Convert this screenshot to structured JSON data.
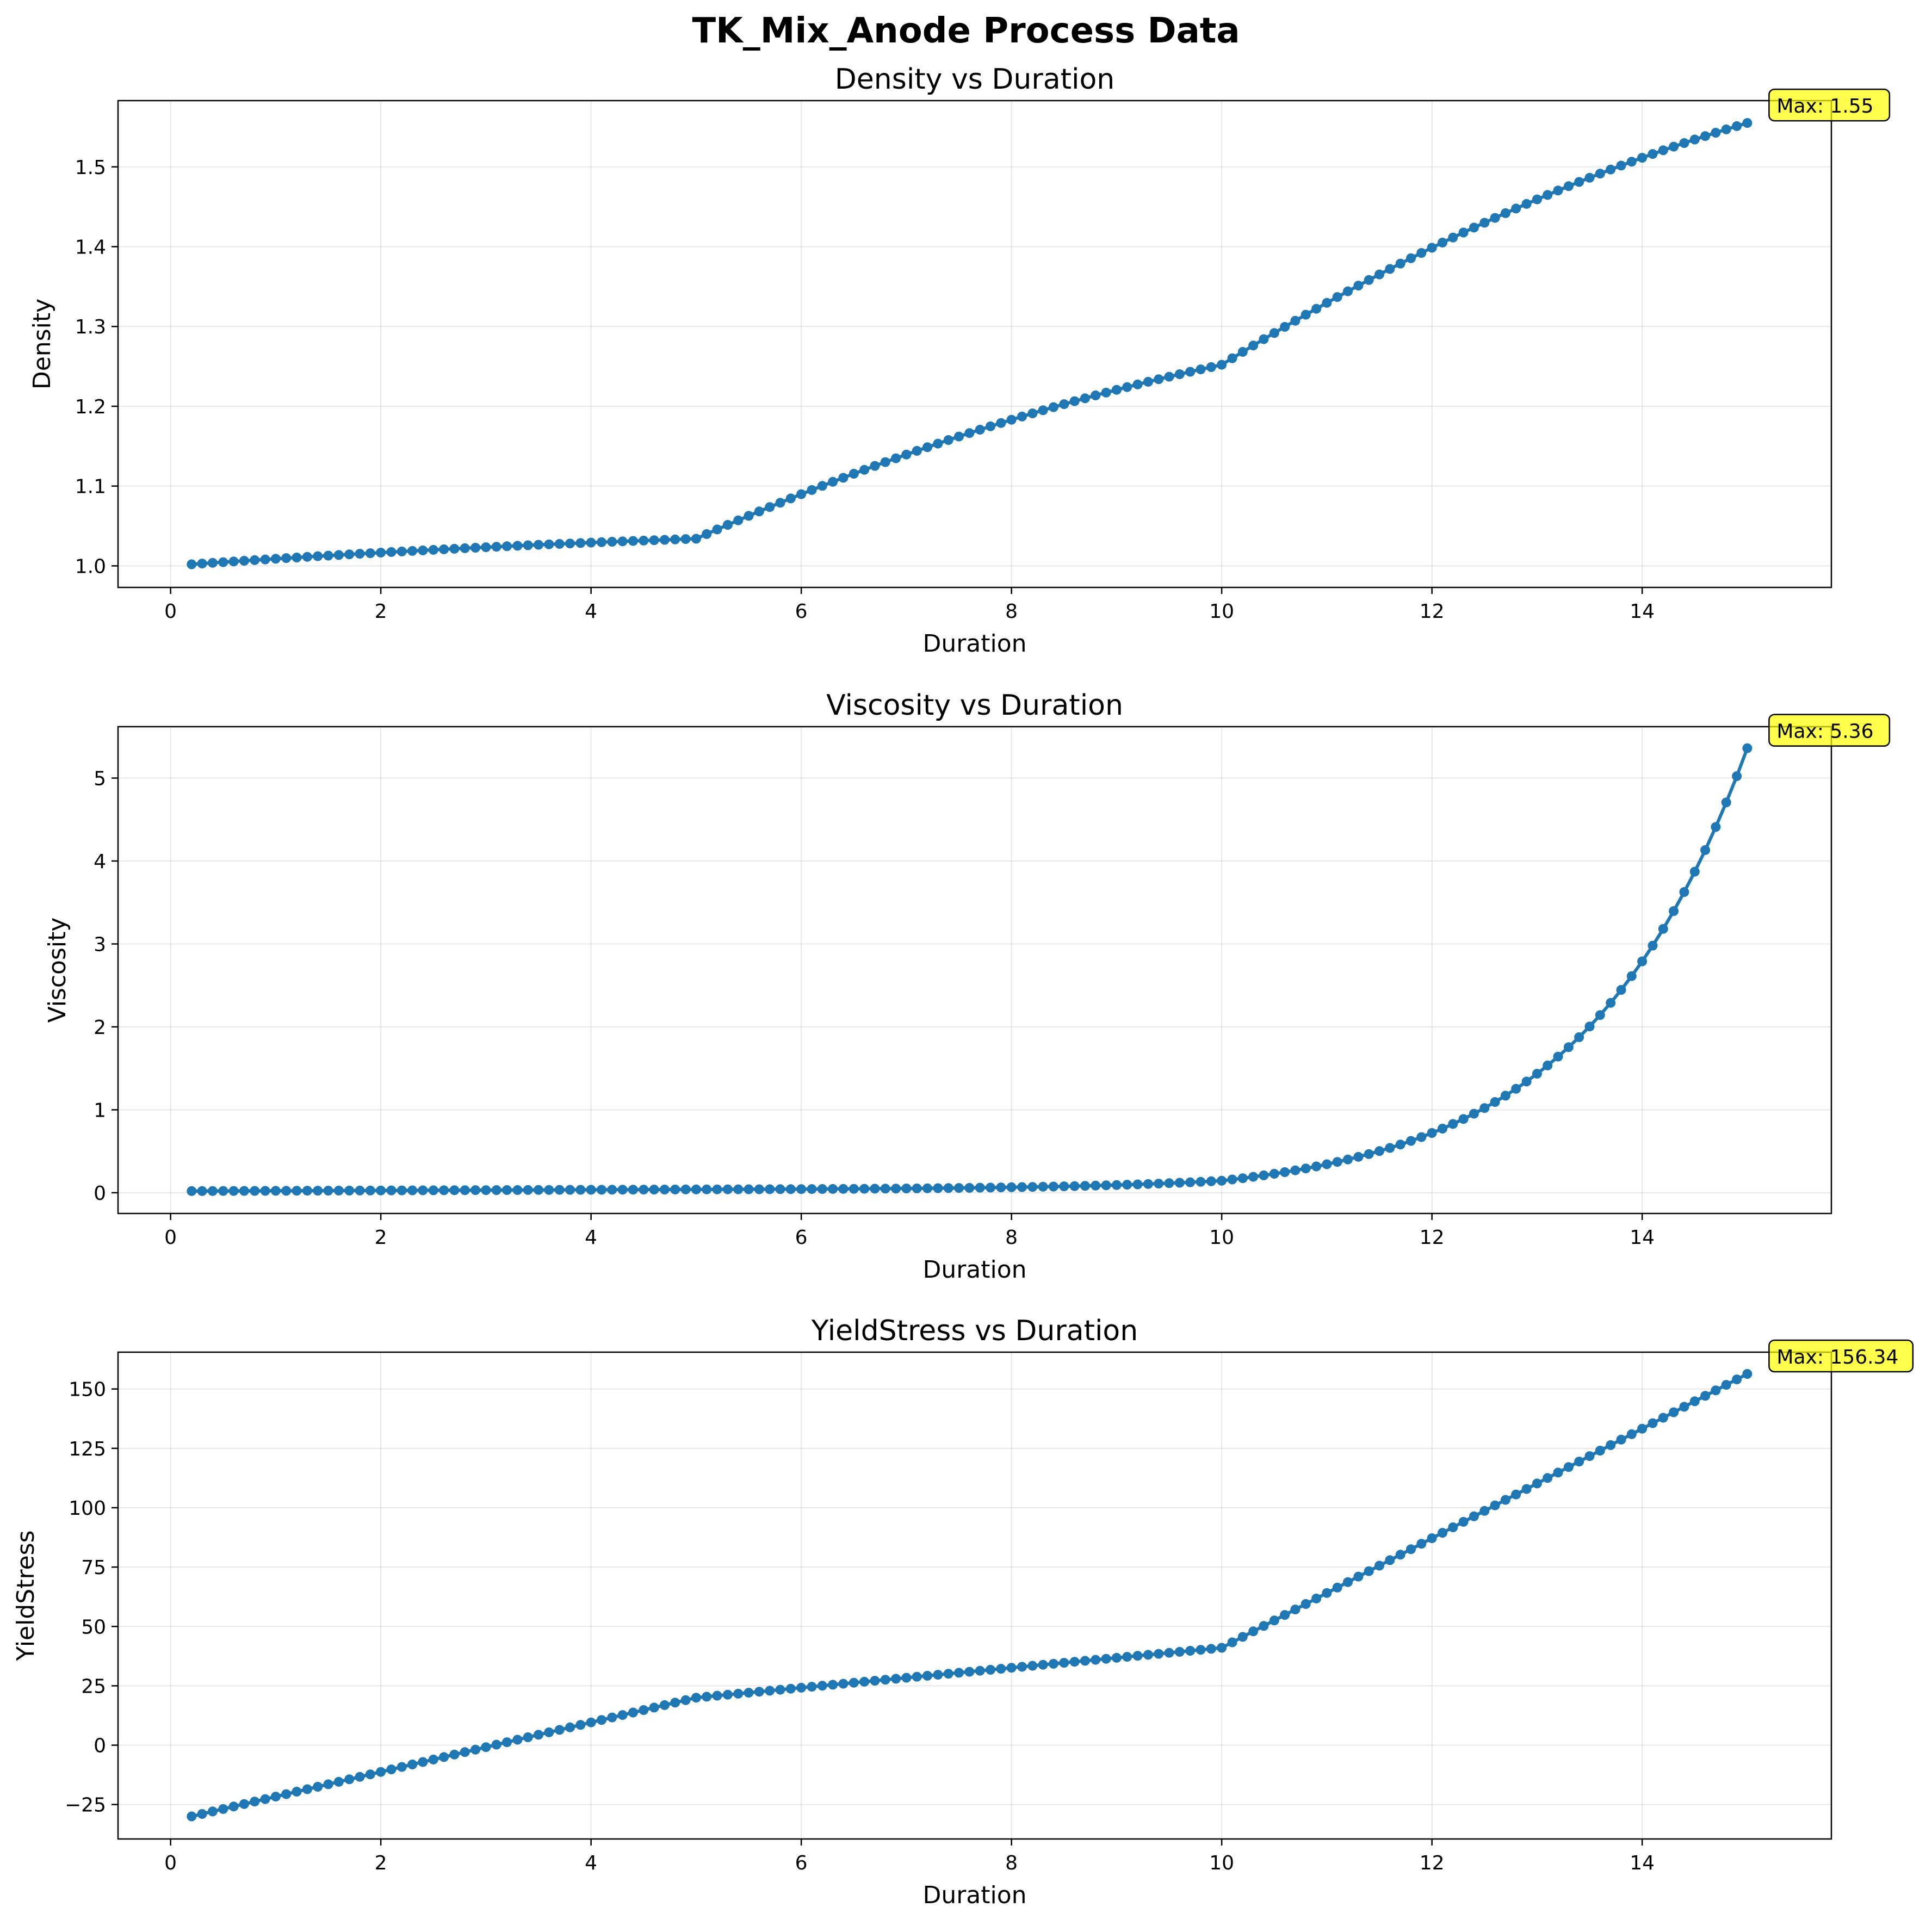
{
  "figure_title": "TK_Mix_Anode Process Data",
  "chart_data": [
    {
      "type": "line",
      "title": "Density vs Duration",
      "xlabel": "Duration",
      "ylabel": "Density",
      "xlim": [
        -0.5,
        15.8
      ],
      "ylim": [
        0.973,
        1.583
      ],
      "xticks": [
        0,
        2,
        4,
        6,
        8,
        10,
        12,
        14
      ],
      "yticks": [
        1.0,
        1.1,
        1.2,
        1.3,
        1.4,
        1.5
      ],
      "ytick_decimals": 1,
      "grid": true,
      "marker": "circle",
      "color": "#1f77b4",
      "x_range": [
        0.2,
        15.0
      ],
      "x_step": 0.1,
      "segments": [
        {
          "from": [
            0.2,
            1.002
          ],
          "to": [
            5.0,
            1.034
          ],
          "curve": "concave"
        },
        {
          "from": [
            5.0,
            1.034
          ],
          "to": [
            10.0,
            1.252
          ],
          "curve": "concave"
        },
        {
          "from": [
            10.0,
            1.252
          ],
          "to": [
            15.0,
            1.555
          ],
          "curve": "concave"
        }
      ],
      "annotation": {
        "text": "Max: 1.55",
        "x": 15.0,
        "y": 1.555,
        "style": "yellow-box"
      }
    },
    {
      "type": "line",
      "title": "Viscosity vs Duration",
      "xlabel": "Duration",
      "ylabel": "Viscosity",
      "xlim": [
        -0.5,
        15.8
      ],
      "ylim": [
        -0.25,
        5.62
      ],
      "xticks": [
        0,
        2,
        4,
        6,
        8,
        10,
        12,
        14
      ],
      "yticks": [
        0,
        1,
        2,
        3,
        4,
        5
      ],
      "ytick_decimals": 0,
      "grid": true,
      "marker": "circle",
      "color": "#1f77b4",
      "x_range": [
        0.2,
        15.0
      ],
      "x_step": 0.1,
      "segments": [
        {
          "from": [
            0.2,
            0.02
          ],
          "to": [
            5.0,
            0.04
          ],
          "curve": "linear"
        },
        {
          "from": [
            5.0,
            0.04
          ],
          "to": [
            10.0,
            0.145
          ],
          "curve": "exponential"
        },
        {
          "from": [
            10.0,
            0.145
          ],
          "to": [
            15.0,
            5.36
          ],
          "curve": "exponential"
        }
      ],
      "annotation": {
        "text": "Max: 5.36",
        "x": 15.0,
        "y": 5.36,
        "style": "yellow-box"
      }
    },
    {
      "type": "line",
      "title": "YieldStress vs Duration",
      "xlabel": "Duration",
      "ylabel": "YieldStress",
      "xlim": [
        -0.5,
        15.8
      ],
      "ylim": [
        -39.5,
        165.5
      ],
      "xticks": [
        0,
        2,
        4,
        6,
        8,
        10,
        12,
        14
      ],
      "yticks": [
        -25,
        0,
        25,
        50,
        75,
        100,
        125,
        150
      ],
      "ytick_decimals": 0,
      "grid": true,
      "marker": "circle",
      "color": "#1f77b4",
      "x_range": [
        0.2,
        15.0
      ],
      "x_step": 0.1,
      "segments": [
        {
          "from": [
            0.2,
            -30.0
          ],
          "to": [
            5.0,
            20.0
          ],
          "curve": "linear"
        },
        {
          "from": [
            5.0,
            20.0
          ],
          "to": [
            10.0,
            41.0
          ],
          "curve": "linear"
        },
        {
          "from": [
            10.0,
            41.0
          ],
          "to": [
            15.0,
            156.34
          ],
          "curve": "linear"
        }
      ],
      "annotation": {
        "text": "Max: 156.34",
        "x": 15.0,
        "y": 156.34,
        "style": "yellow-box"
      }
    }
  ]
}
